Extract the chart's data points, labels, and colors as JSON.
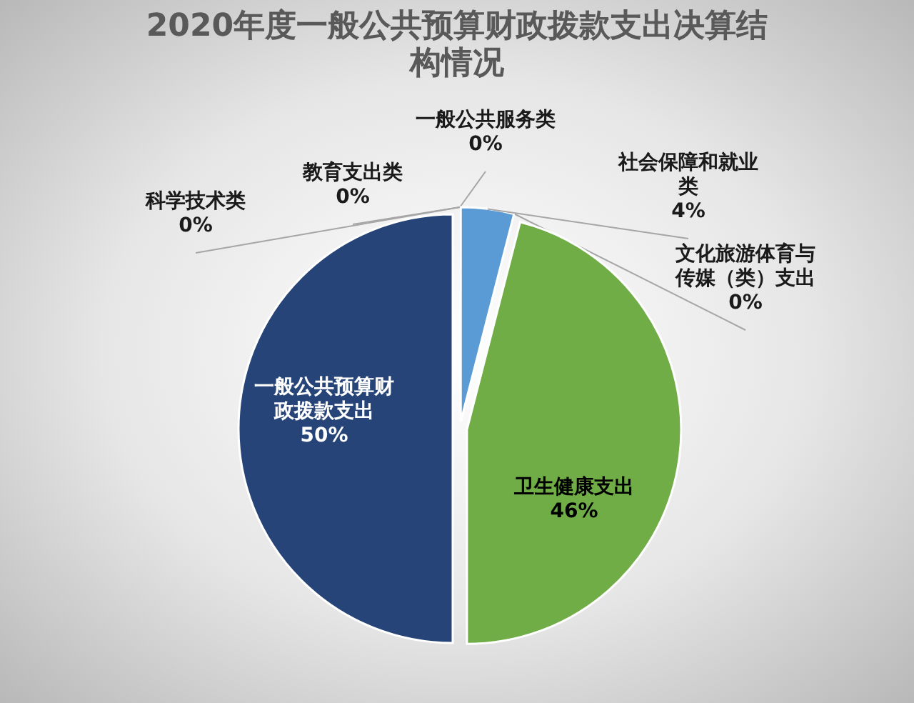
{
  "chart_data": {
    "type": "pie",
    "title": "2020年度一般公共预算财政拨款支出决算结构情况",
    "categories": [
      "一般公共服务类",
      "社会保障和就业类",
      "文化旅游体育与传媒（类）支出",
      "卫生健康支出",
      "一般公共预算财政拨款支出",
      "科学技术类",
      "教育支出类"
    ],
    "values": [
      0,
      4,
      0,
      46,
      50,
      0,
      0
    ],
    "value_labels": [
      "0%",
      "4%",
      "0%",
      "46%",
      "50%",
      "0%",
      "0%"
    ],
    "colors": [
      "#ed7d31",
      "#5b9bd5",
      "#ffc000",
      "#70ad47",
      "#264478",
      "#9e480e",
      "#636363"
    ]
  }
}
